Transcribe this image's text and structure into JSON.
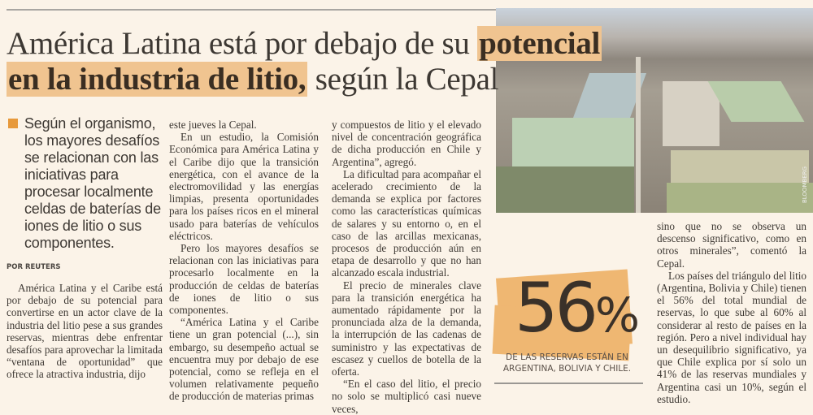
{
  "headline": {
    "part1": "América Latina está por debajo de su ",
    "highlight1": "potencial",
    "highlight2": "en la industria de litio,",
    "part2": " según la Cepal"
  },
  "photo": {
    "credit": "BLOOMBERG"
  },
  "deck": "Según el organismo, los mayores desafíos se relacionan con las iniciativas para procesar localmente celdas de baterías de iones de litio o sus componentes.",
  "byline": "POR REUTERS",
  "body": {
    "col1": [
      "América Latina y el Caribe está por debajo de su potencial para convertirse en un actor clave de la industria del litio pese a sus grandes reservas, mientras debe enfrentar desafíos para aprovechar la limitada “ventana de oportunidad” que ofrece la atractiva industria, dijo"
    ],
    "col2": [
      "este jueves la Cepal.",
      "En un estudio, la Comisión Económica para América Latina y el Caribe dijo que la transición energética, con el avance de la electromovilidad y las energías limpias, presenta oportunidades para los países ricos en el mineral usado para baterías de vehículos eléctricos.",
      "Pero los mayores desafíos se relacionan con las iniciativas para procesarlo localmente en la producción de celdas de baterías de iones de litio o sus componentes.",
      "“América Latina y el Caribe tiene un gran potencial (...), sin embargo, su desempeño actual se encuentra muy por debajo de ese potencial, como se refleja en el volumen relativamente pequeño de producción de materias primas"
    ],
    "col3": [
      "y compuestos de litio y el elevado nivel de concentración geográfica de dicha producción en Chile y Argentina”, agregó.",
      "La dificultad para acompañar el acelerado crecimiento de la demanda se explica por factores como las características químicas de salares y su entorno o, en el caso de las arcillas mexicanas, procesos de producción aún en etapa de desarrollo y que no han alcanzado escala industrial.",
      "El precio de minerales clave para la transición energética ha aumentado rápidamente por la pronunciada alza de la demanda, la interrupción de las cadenas de suministro y las expectativas de escasez y cuellos de botella de la oferta.",
      "“En el caso del litio, el precio no solo se multiplicó casi nueve veces,"
    ],
    "col4": [
      "sino que no se observa un descenso significativo, como en otros minerales”, comentó la Cepal.",
      "Los países del triángulo del litio (Argentina, Bolivia y Chile) tienen el 56% del total mundial de reservas, lo que sube al 60% al considerar al resto de países en la región. Pero a nivel individual hay un desequilibrio significativo, ya que Chile explica por sí solo un 41% de las reservas mundiales y Argentina casi un 10%, según el estudio."
    ]
  },
  "stat": {
    "number": "56",
    "unit": "%",
    "caption_line1": "DE LAS RESERVAS ESTÁN EN",
    "caption_line2": "ARGENTINA, BOLIVIA Y CHILE."
  },
  "colors": {
    "accent": "#f0c490",
    "bullet": "#e7993b",
    "background": "#fbf3e8"
  }
}
